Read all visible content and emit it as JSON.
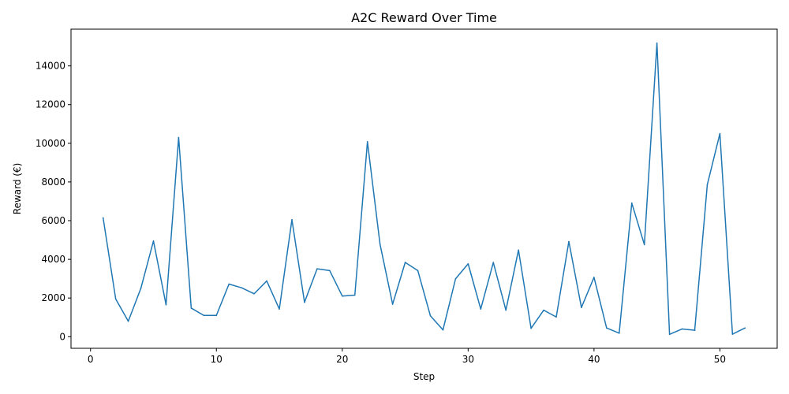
{
  "chart_data": {
    "type": "line",
    "title": "A2C Reward Over Time",
    "xlabel": "Step",
    "ylabel": "Reward (€)",
    "xlim": [
      -1.55,
      54.55
    ],
    "ylim": [
      -600,
      15900
    ],
    "xticks": [
      0,
      10,
      20,
      30,
      40,
      50
    ],
    "yticks": [
      0,
      2000,
      4000,
      6000,
      8000,
      10000,
      12000,
      14000
    ],
    "grid": false,
    "legend": "none",
    "color": "#1f77b4",
    "series": [
      {
        "x": [
          1,
          2,
          3,
          4,
          5,
          6,
          7,
          8,
          9,
          10,
          11,
          12,
          13,
          14,
          15,
          16,
          17,
          18,
          19,
          20,
          21,
          22,
          23,
          24,
          25,
          26,
          27,
          28,
          29,
          30,
          31,
          32,
          33,
          34,
          35,
          36,
          37,
          38,
          39,
          40,
          41,
          42,
          43,
          44,
          45,
          46,
          47,
          48,
          49,
          50,
          51,
          52
        ],
        "values": [
          6150,
          1950,
          800,
          2500,
          4950,
          1650,
          10300,
          1480,
          1100,
          1100,
          2720,
          2530,
          2220,
          2880,
          1430,
          6050,
          1780,
          3510,
          3420,
          2100,
          2150,
          10080,
          4780,
          1680,
          3840,
          3420,
          1080,
          350,
          2990,
          3770,
          1430,
          3840,
          1370,
          4480,
          430,
          1370,
          1020,
          4920,
          1510,
          3070,
          450,
          180,
          6910,
          4760,
          15180,
          120,
          400,
          330,
          7860,
          10500,
          130,
          450
        ]
      }
    ]
  }
}
